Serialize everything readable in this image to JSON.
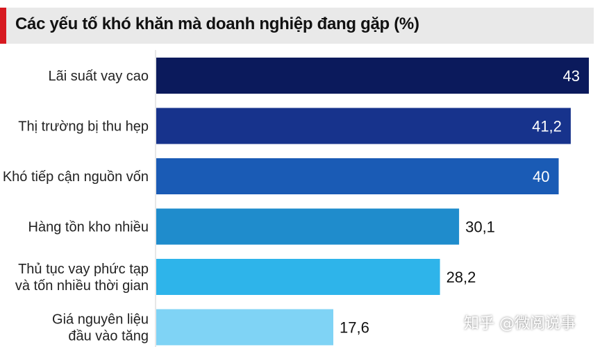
{
  "chart_data": {
    "type": "bar",
    "orientation": "horizontal",
    "title": "Các yếu tố khó khăn mà doanh nghiệp đang gặp (%)",
    "categories": [
      [
        "Lãi suất vay cao"
      ],
      [
        "Thị trường bị thu hẹp"
      ],
      [
        "Khó tiếp cận nguồn vốn"
      ],
      [
        "Hàng tồn kho nhiều"
      ],
      [
        "Thủ tục vay phức tạp",
        "và tốn nhiều thời gian"
      ],
      [
        "Giá nguyên liệu",
        "đầu vào tăng"
      ]
    ],
    "values": [
      43,
      41.2,
      40,
      30.1,
      28.2,
      17.6
    ],
    "value_labels": [
      "43",
      "41,2",
      "40",
      "30,1",
      "28,2",
      "17,6"
    ],
    "xlim": [
      0,
      43
    ],
    "colors": [
      "#0b1a5c",
      "#17338c",
      "#1a5bb5",
      "#1f8ccc",
      "#2eb4ea",
      "#7fd3f5"
    ],
    "label_colors": [
      "#ffffff",
      "#ffffff",
      "#ffffff",
      "#111111",
      "#111111",
      "#111111"
    ],
    "accent_color": "#d71920"
  },
  "watermark": "知乎 @微阅说事"
}
